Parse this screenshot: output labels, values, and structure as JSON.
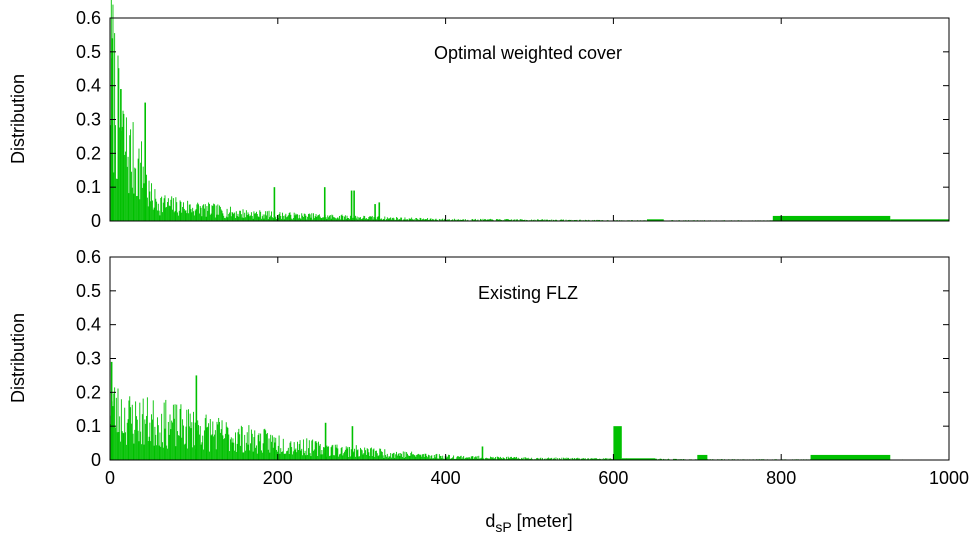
{
  "chart_data": [
    {
      "type": "bar",
      "title": "Optimal weighted cover",
      "xlabel": "",
      "ylabel": "Distribution",
      "xlim": [
        0,
        1000
      ],
      "ylim": [
        0,
        0.6
      ],
      "yticks": [
        "0",
        "0.1",
        "0.2",
        "0.3",
        "0.4",
        "0.5",
        "0.6"
      ],
      "xticks_shown": false,
      "grid": false,
      "color": "#00c000",
      "noise_seed": 7,
      "envelope": [
        [
          0,
          0.54
        ],
        [
          5,
          0.45
        ],
        [
          10,
          0.33
        ],
        [
          20,
          0.24
        ],
        [
          30,
          0.2
        ],
        [
          40,
          0.17
        ],
        [
          45,
          0.1
        ],
        [
          50,
          0.075
        ],
        [
          70,
          0.055
        ],
        [
          100,
          0.045
        ],
        [
          150,
          0.028
        ],
        [
          200,
          0.02
        ],
        [
          250,
          0.016
        ],
        [
          300,
          0.012
        ],
        [
          350,
          0.008
        ],
        [
          400,
          0.005
        ],
        [
          500,
          0.004
        ],
        [
          600,
          0.002
        ],
        [
          1000,
          0.001
        ]
      ],
      "spikes": [
        [
          2,
          0.54
        ],
        [
          12,
          0.39
        ],
        [
          41,
          0.35
        ],
        [
          195,
          0.1
        ],
        [
          255,
          0.1
        ],
        [
          287,
          0.09
        ],
        [
          290,
          0.09
        ],
        [
          315,
          0.05
        ],
        [
          320,
          0.055
        ]
      ],
      "blocks": [
        [
          640,
          660,
          0.005
        ],
        [
          790,
          930,
          0.015
        ],
        [
          930,
          1000,
          0.005
        ]
      ]
    },
    {
      "type": "bar",
      "title": "Existing FLZ",
      "xlabel": "d_sP [meter]",
      "xlabel_main": "d",
      "xlabel_sub": "sP",
      "xlabel_unit": " [meter]",
      "ylabel": "Distribution",
      "xlim": [
        0,
        1000
      ],
      "ylim": [
        0,
        0.6
      ],
      "yticks": [
        "0",
        "0.1",
        "0.2",
        "0.3",
        "0.4",
        "0.5",
        "0.6"
      ],
      "xticks": [
        "0",
        "200",
        "400",
        "600",
        "800",
        "1000"
      ],
      "grid": false,
      "color": "#00c000",
      "noise_seed": 23,
      "envelope": [
        [
          0,
          0.2
        ],
        [
          10,
          0.16
        ],
        [
          30,
          0.14
        ],
        [
          60,
          0.13
        ],
        [
          100,
          0.11
        ],
        [
          150,
          0.08
        ],
        [
          200,
          0.06
        ],
        [
          250,
          0.04
        ],
        [
          300,
          0.03
        ],
        [
          350,
          0.02
        ],
        [
          400,
          0.012
        ],
        [
          450,
          0.008
        ],
        [
          500,
          0.006
        ],
        [
          600,
          0.004
        ],
        [
          700,
          0.002
        ],
        [
          1000,
          0.001
        ]
      ],
      "spikes": [
        [
          1,
          0.29
        ],
        [
          102,
          0.25
        ],
        [
          256,
          0.11
        ],
        [
          288,
          0.1
        ],
        [
          443,
          0.04
        ]
      ],
      "blocks": [
        [
          600,
          610,
          0.1
        ],
        [
          610,
          650,
          0.005
        ],
        [
          700,
          712,
          0.015
        ],
        [
          835,
          930,
          0.015
        ]
      ]
    }
  ]
}
